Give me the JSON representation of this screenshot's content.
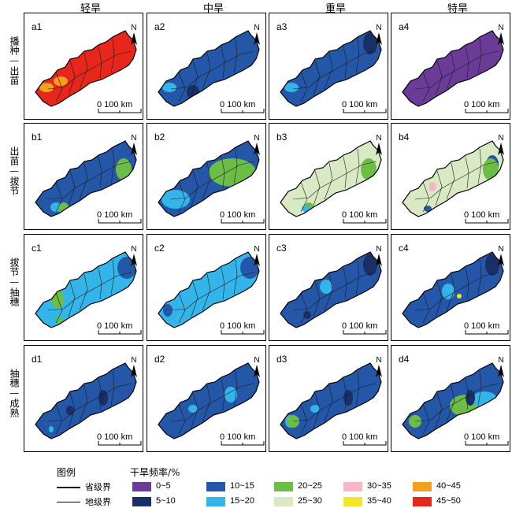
{
  "column_headers": [
    "轻旱",
    "中旱",
    "重旱",
    "特旱"
  ],
  "row_labels": [
    "播种—出苗",
    "出苗—拔节",
    "拔节—抽穗",
    "抽穗—成熟"
  ],
  "scale_label": "0  100 km",
  "north_label": "N",
  "panels": [
    {
      "id": "a1",
      "base": "#e8271c",
      "spots": [
        [
          "#f3a01f",
          0
        ],
        [
          "#f3a01f",
          1
        ]
      ]
    },
    {
      "id": "a2",
      "base": "#2457a8",
      "spots": [
        [
          "#1a2f66",
          2
        ],
        [
          "#33b5ea",
          0
        ]
      ]
    },
    {
      "id": "a3",
      "base": "#2457a8",
      "spots": [
        [
          "#1a2f66",
          3
        ],
        [
          "#33b5ea",
          0
        ]
      ]
    },
    {
      "id": "a4",
      "base": "#6b3b98",
      "spots": []
    },
    {
      "id": "b1",
      "base": "#2457a8",
      "spots": [
        [
          "#6cbd45",
          4
        ],
        [
          "#33b5ea",
          5
        ],
        [
          "#6cbd45",
          6
        ]
      ]
    },
    {
      "id": "b2",
      "base": "#2457a8",
      "spots": [
        [
          "#6cbd45",
          7
        ],
        [
          "#33b5ea",
          8
        ]
      ]
    },
    {
      "id": "b3",
      "base": "#d8e9c4",
      "spots": [
        [
          "#6cbd45",
          4
        ],
        [
          "#6cbd45",
          6
        ],
        [
          "#33b5ea",
          9
        ]
      ]
    },
    {
      "id": "b4",
      "base": "#d8e9c4",
      "spots": [
        [
          "#2457a8",
          10
        ],
        [
          "#f6b8c6",
          11
        ],
        [
          "#2457a8",
          9
        ],
        [
          "#6cbd45",
          4
        ]
      ]
    },
    {
      "id": "c1",
      "base": "#33b5ea",
      "spots": [
        [
          "#2457a8",
          12
        ],
        [
          "#6cbd45",
          13
        ],
        [
          "#6cbd45",
          14
        ]
      ]
    },
    {
      "id": "c2",
      "base": "#33b5ea",
      "spots": [
        [
          "#2457a8",
          15
        ],
        [
          "#2457a8",
          12
        ]
      ]
    },
    {
      "id": "c3",
      "base": "#2457a8",
      "spots": [
        [
          "#1a2f66",
          3
        ],
        [
          "#33b5ea",
          16
        ],
        [
          "#1a2f66",
          17
        ]
      ]
    },
    {
      "id": "c4",
      "base": "#2457a8",
      "spots": [
        [
          "#1a2f66",
          3
        ],
        [
          "#33b5ea",
          18
        ],
        [
          "#f3e52a",
          19
        ]
      ]
    },
    {
      "id": "d1",
      "base": "#2457a8",
      "spots": [
        [
          "#1a2f66",
          20
        ],
        [
          "#1a2f66",
          21
        ],
        [
          "#33b5ea",
          22
        ]
      ]
    },
    {
      "id": "d2",
      "base": "#2457a8",
      "spots": [
        [
          "#33b5ea",
          23
        ],
        [
          "#33b5ea",
          24
        ]
      ]
    },
    {
      "id": "d3",
      "base": "#2457a8",
      "spots": [
        [
          "#33b5ea",
          15
        ],
        [
          "#6cbd45",
          25
        ],
        [
          "#1a2f66",
          20
        ],
        [
          "#33b5ea",
          24
        ]
      ]
    },
    {
      "id": "d4",
      "base": "#2457a8",
      "spots": [
        [
          "#6cbd45",
          26
        ],
        [
          "#33b5ea",
          27
        ],
        [
          "#1a2f66",
          20
        ],
        [
          "#6cbd45",
          25
        ]
      ]
    }
  ],
  "legend": {
    "title": "图例",
    "freq_title": "干旱频率/%",
    "province_boundary": "省级界",
    "prefecture_boundary": "地级界",
    "classes": [
      {
        "label": "0~5",
        "color": "#6b3b98"
      },
      {
        "label": "5~10",
        "color": "#1a2f66"
      },
      {
        "label": "10~15",
        "color": "#2457a8"
      },
      {
        "label": "15~20",
        "color": "#33b5ea"
      },
      {
        "label": "20~25",
        "color": "#6cbd45"
      },
      {
        "label": "25~30",
        "color": "#d8e9c4"
      },
      {
        "label": "30~35",
        "color": "#f6b8c6"
      },
      {
        "label": "35~40",
        "color": "#f3e52a"
      },
      {
        "label": "40~45",
        "color": "#f3a01f"
      },
      {
        "label": "45~50",
        "color": "#e8271c"
      }
    ]
  }
}
